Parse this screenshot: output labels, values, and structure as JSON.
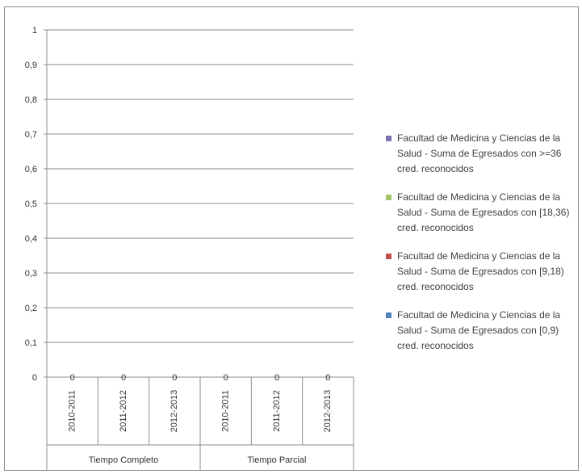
{
  "chart_data": {
    "type": "bar",
    "stacked": true,
    "title": "",
    "xlabel": "",
    "ylabel": "",
    "ylim": [
      0,
      1
    ],
    "y_ticks": [
      "0",
      "0,1",
      "0,2",
      "0,3",
      "0,4",
      "0,5",
      "0,6",
      "0,7",
      "0,8",
      "0,9",
      "1"
    ],
    "grid": true,
    "legend_position": "right",
    "groups": [
      {
        "label": "Tiempo Completo",
        "categories": [
          "2010-2011",
          "2011-2012",
          "2012-2013"
        ]
      },
      {
        "label": "Tiempo Parcial",
        "categories": [
          "2010-2011",
          "2011-2012",
          "2012-2013"
        ]
      }
    ],
    "categories": [
      "2010-2011",
      "2011-2012",
      "2012-2013",
      "2010-2011",
      "2011-2012",
      "2012-2013"
    ],
    "data_labels": [
      "0",
      "0",
      "0",
      "0",
      "0",
      "0"
    ],
    "series": [
      {
        "name": "Facultad de Medicina y Ciencias de la Salud - Suma de Egresados con >=36 cred. reconocidos",
        "color": "#7e6fb1",
        "values": [
          0,
          0,
          0,
          0,
          0,
          0
        ]
      },
      {
        "name": "Facultad de Medicina y Ciencias de la Salud - Suma de Egresados con [18,36) cred. reconocidos",
        "color": "#a2c162",
        "values": [
          0,
          0,
          0,
          0,
          0,
          0
        ]
      },
      {
        "name": "Facultad de Medicina y Ciencias de la Salud - Suma de Egresados con [9,18) cred. reconocidos",
        "color": "#c0504d",
        "values": [
          0,
          0,
          0,
          0,
          0,
          0
        ]
      },
      {
        "name": "Facultad de Medicina y Ciencias de la Salud - Suma de Egresados con [0,9) cred. reconocidos",
        "color": "#4f81bd",
        "values": [
          0,
          0,
          0,
          0,
          0,
          0
        ]
      }
    ]
  }
}
